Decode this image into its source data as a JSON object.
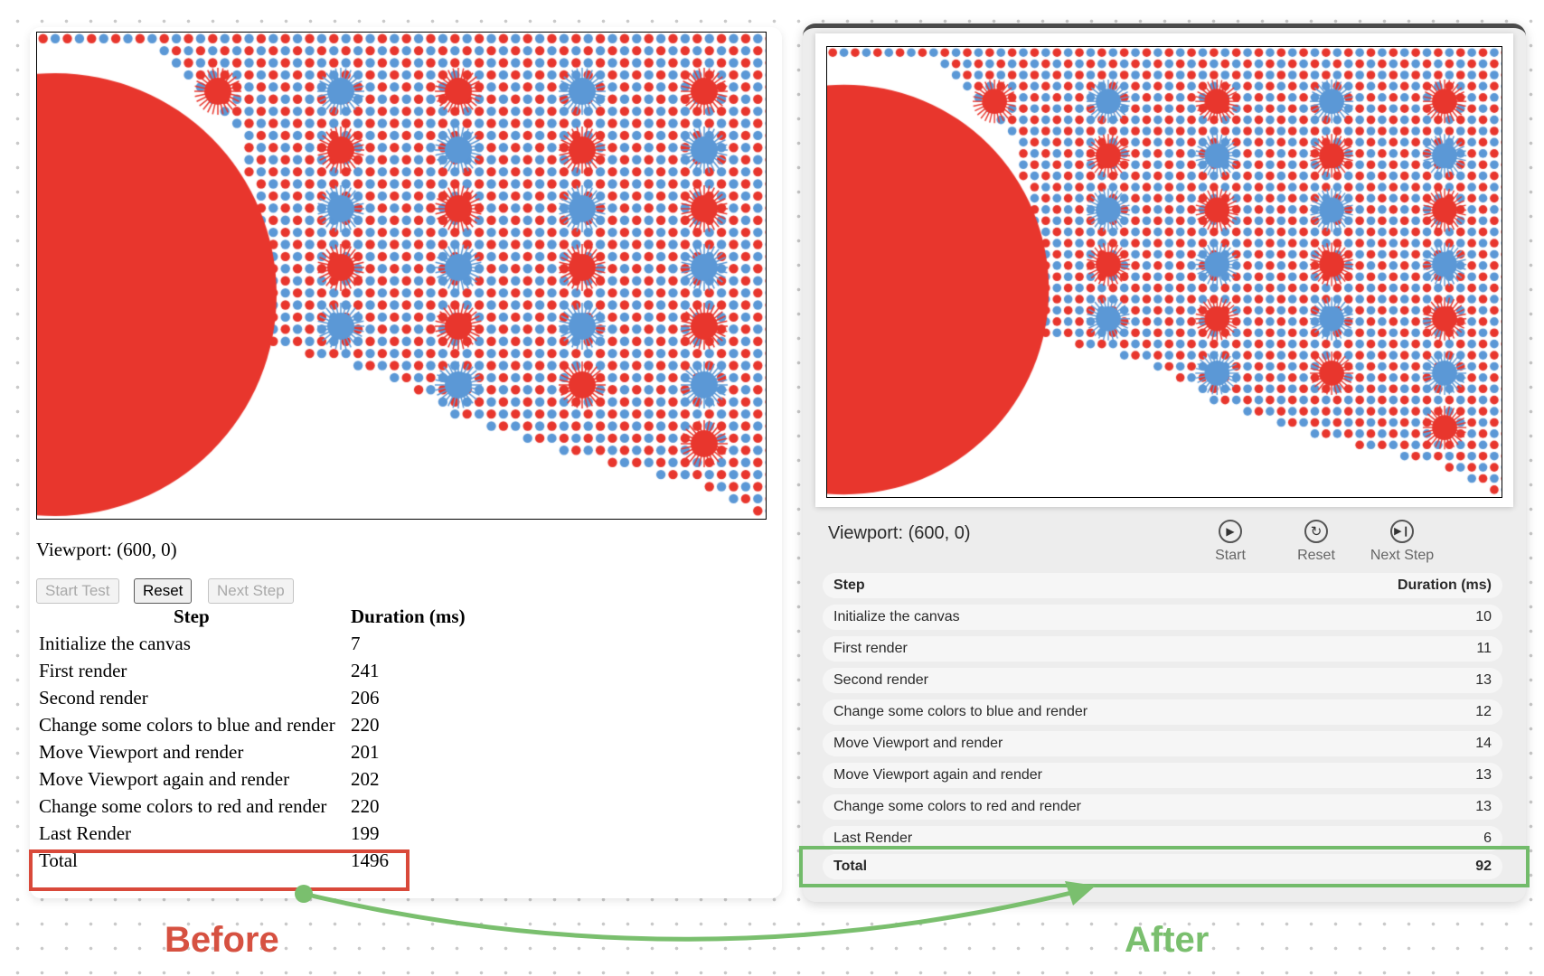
{
  "before": {
    "viewport_text": "Viewport: (600, 0)",
    "buttons": {
      "start": "Start Test",
      "reset": "Reset",
      "next": "Next Step"
    },
    "table": {
      "headers": [
        "Step",
        "Duration (ms)"
      ],
      "rows": [
        [
          "Initialize the canvas",
          "7"
        ],
        [
          "First render",
          "241"
        ],
        [
          "Second render",
          "206"
        ],
        [
          "Change some colors to blue and render",
          "220"
        ],
        [
          "Move Viewport and render",
          "201"
        ],
        [
          "Move Viewport again and render",
          "202"
        ],
        [
          "Change some colors to red and render",
          "220"
        ],
        [
          "Last Render",
          "199"
        ]
      ],
      "total": [
        "Total",
        "1496"
      ]
    },
    "label": "Before"
  },
  "after": {
    "viewport_text": "Viewport: (600, 0)",
    "buttons": {
      "start": "Start",
      "reset": "Reset",
      "next": "Next Step"
    },
    "table": {
      "headers": [
        "Step",
        "Duration (ms)"
      ],
      "rows": [
        [
          "Initialize the canvas",
          "10"
        ],
        [
          "First render",
          "11"
        ],
        [
          "Second render",
          "13"
        ],
        [
          "Change some colors to blue and render",
          "12"
        ],
        [
          "Move Viewport and render",
          "14"
        ],
        [
          "Move Viewport again and render",
          "13"
        ],
        [
          "Change some colors to red and render",
          "13"
        ],
        [
          "Last Render",
          "6"
        ]
      ],
      "total": [
        "Total",
        "92"
      ]
    },
    "label": "After"
  },
  "colors": {
    "red": "#e8362d",
    "blue": "#5b98d6",
    "before_accent": "#d65141",
    "after_accent": "#7abf6e"
  },
  "icons": [
    "play-icon",
    "reset-icon",
    "next-step-icon"
  ]
}
